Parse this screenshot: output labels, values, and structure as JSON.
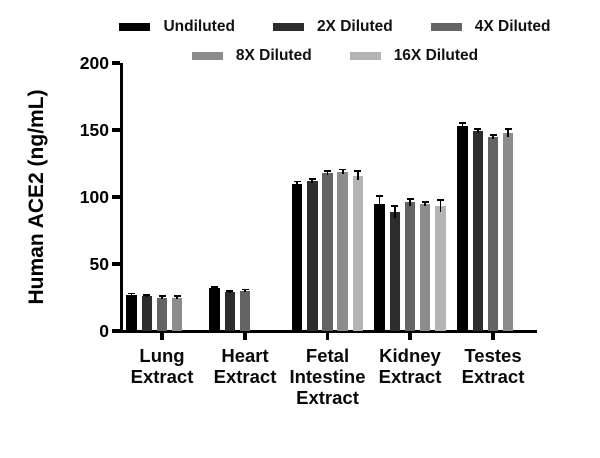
{
  "figure": {
    "background": "#ffffff"
  },
  "legend": {
    "rows": [
      [
        0,
        1,
        2
      ],
      [
        3,
        4
      ]
    ]
  },
  "chart_data": {
    "type": "bar",
    "title": "",
    "xlabel": "",
    "ylabel": "Human ACE2 (ng/mL)",
    "ylim": [
      0,
      200
    ],
    "yticks": [
      0,
      50,
      100,
      150,
      200
    ],
    "grid": false,
    "legend_position": "top",
    "error_bars": true,
    "categories": [
      "Lung Extract",
      "Heart Extract",
      "Fetal Intestine Extract",
      "Kidney Extract",
      "Testes Extract"
    ],
    "series": [
      {
        "name": "Undiluted",
        "color": "#000000",
        "values": [
          27,
          32,
          110,
          95,
          153
        ],
        "errors": [
          1,
          1,
          1.5,
          5.5,
          2.5
        ]
      },
      {
        "name": "2X Diluted",
        "color": "#2d2d2d",
        "values": [
          26,
          29,
          112,
          89,
          149
        ],
        "errors": [
          1,
          1,
          1.5,
          4.5,
          1.5
        ]
      },
      {
        "name": "4X Diluted",
        "color": "#646464",
        "values": [
          25,
          30,
          118,
          96,
          145
        ],
        "errors": [
          1,
          1,
          1.5,
          2.5,
          1.5
        ]
      },
      {
        "name": "8X Diluted",
        "color": "#8c8c8c",
        "values": [
          25,
          null,
          119,
          95,
          148
        ],
        "errors": [
          1,
          null,
          1.5,
          1.5,
          3
        ]
      },
      {
        "name": "16X Diluted",
        "color": "#b4b4b4",
        "values": [
          null,
          null,
          116,
          93,
          null
        ],
        "errors": [
          null,
          null,
          3.5,
          4.5,
          null
        ]
      }
    ]
  }
}
